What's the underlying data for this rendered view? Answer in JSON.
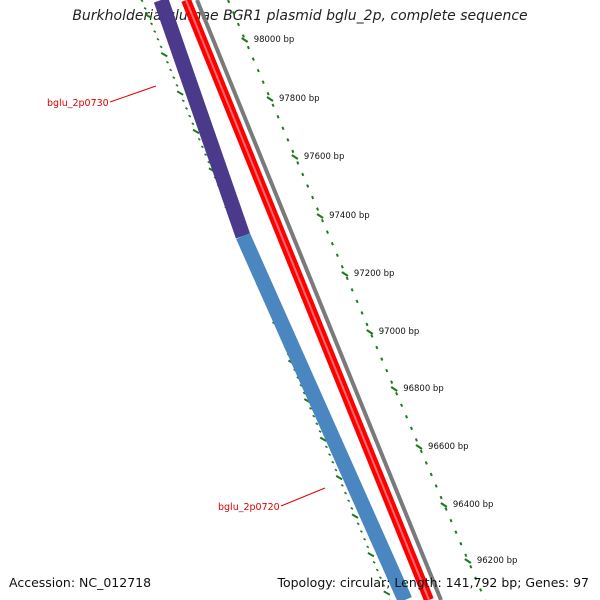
{
  "title": "Burkholderia glumae BGR1 plasmid bglu_2p, complete sequence",
  "footer": {
    "accession": "Accession: NC_012718",
    "summary": "Topology: circular; Length: 141,792 bp; Genes: 97"
  },
  "ruler": {
    "color": "#1e7a1e",
    "major_labels": [
      "98000 bp",
      "97800 bp",
      "97600 bp",
      "97400 bp",
      "97200 bp",
      "97000 bp",
      "96800 bp",
      "96600 bp",
      "96400 bp",
      "96200 bp"
    ]
  },
  "genes": [
    {
      "name": "bglu_2p0730",
      "color": "#4b3a8c"
    },
    {
      "name": "bglu_2p0720",
      "color": "#4a86c0"
    }
  ],
  "tracks": {
    "forward_color": "#ff0000",
    "backbone_color": "#7a7a7a",
    "inner_ruler_color": "#1e7a1e"
  }
}
